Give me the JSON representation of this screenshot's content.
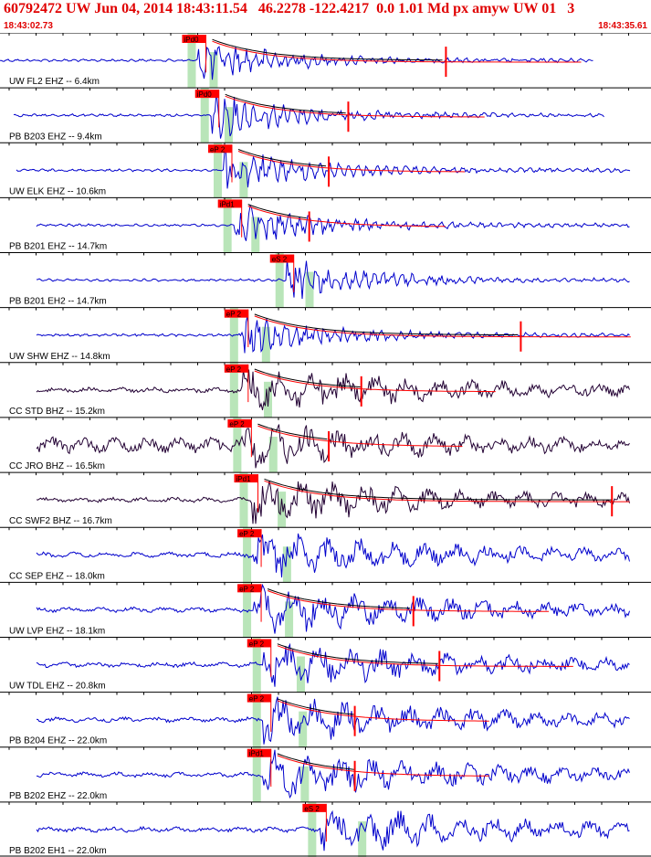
{
  "header": {
    "title": "60792472 UW Jun 04, 2014 18:43:11.54   46.2278 -122.4217  0.0 1.01 Md px amyw UW 01   3",
    "time_start": "18:43:02.73",
    "time_end": "18:43:35.61"
  },
  "colors": {
    "header_text": "#e00000",
    "trace_blue": "#0000cc",
    "trace_dark": "#220033",
    "pick_box": "#ff0000",
    "window_green": "#b9e5b9",
    "coda_line": "#000000",
    "fit_line": "#ff0000"
  },
  "chart_data": {
    "type": "seismogram",
    "x_range_label": [
      "18:43:02.73",
      "18:43:35.61"
    ],
    "traces": [
      {
        "label": "UW FL2 EHZ -- 6.4km",
        "pick": "iPd0",
        "color": "blue",
        "p": 0.305,
        "coda": 0.685
      },
      {
        "label": "PB B203 EHZ -- 9.4km",
        "pick": "iPd0",
        "color": "blue",
        "p": 0.325,
        "coda": 0.535
      },
      {
        "label": "UW ELK EHZ -- 10.6km",
        "pick": "eP 2",
        "color": "blue",
        "p": 0.345,
        "coda": 0.505
      },
      {
        "label": "PB B201 EHZ -- 14.7km",
        "pick": "iPd1",
        "color": "blue",
        "p": 0.36,
        "coda": 0.475
      },
      {
        "label": "PB B201 EH2 -- 14.7km",
        "pick": "eS 2",
        "color": "blue",
        "p": 0.44,
        "coda": null
      },
      {
        "label": "UW SHW EHZ -- 14.8km",
        "pick": "eP 2",
        "color": "blue",
        "p": 0.37,
        "coda": 0.8
      },
      {
        "label": "CC STD BHZ -- 15.2km",
        "pick": "eP 2",
        "color": "dark",
        "p": 0.37,
        "coda": 0.555
      },
      {
        "label": "CC JRO BHZ -- 16.5km",
        "pick": "eP 2",
        "color": "dark",
        "p": 0.375,
        "coda": 0.505
      },
      {
        "label": "CC SWF2 BHZ -- 16.7km",
        "pick": "iPd1",
        "color": "dark",
        "p": 0.385,
        "coda": 0.94
      },
      {
        "label": "CC SEP EHZ -- 18.0km",
        "pick": "eP 2",
        "color": "blue",
        "p": 0.39,
        "coda": null
      },
      {
        "label": "UW LVP EHZ -- 18.1km",
        "pick": "eP 2",
        "color": "blue",
        "p": 0.39,
        "coda": 0.635
      },
      {
        "label": "UW TDL EHZ -- 20.8km",
        "pick": "eP 2",
        "color": "blue",
        "p": 0.405,
        "coda": 0.675
      },
      {
        "label": "PB B204 EHZ -- 22.0km",
        "pick": "eP 2",
        "color": "blue",
        "p": 0.405,
        "coda": 0.545
      },
      {
        "label": "PB B202 EHZ -- 22.0km",
        "pick": "iPd1",
        "color": "blue",
        "p": 0.405,
        "coda": 0.545
      },
      {
        "label": "PB B202 EH1 -- 22.0km",
        "pick": "eS 2",
        "color": "blue",
        "p": 0.49,
        "coda": null
      }
    ]
  }
}
